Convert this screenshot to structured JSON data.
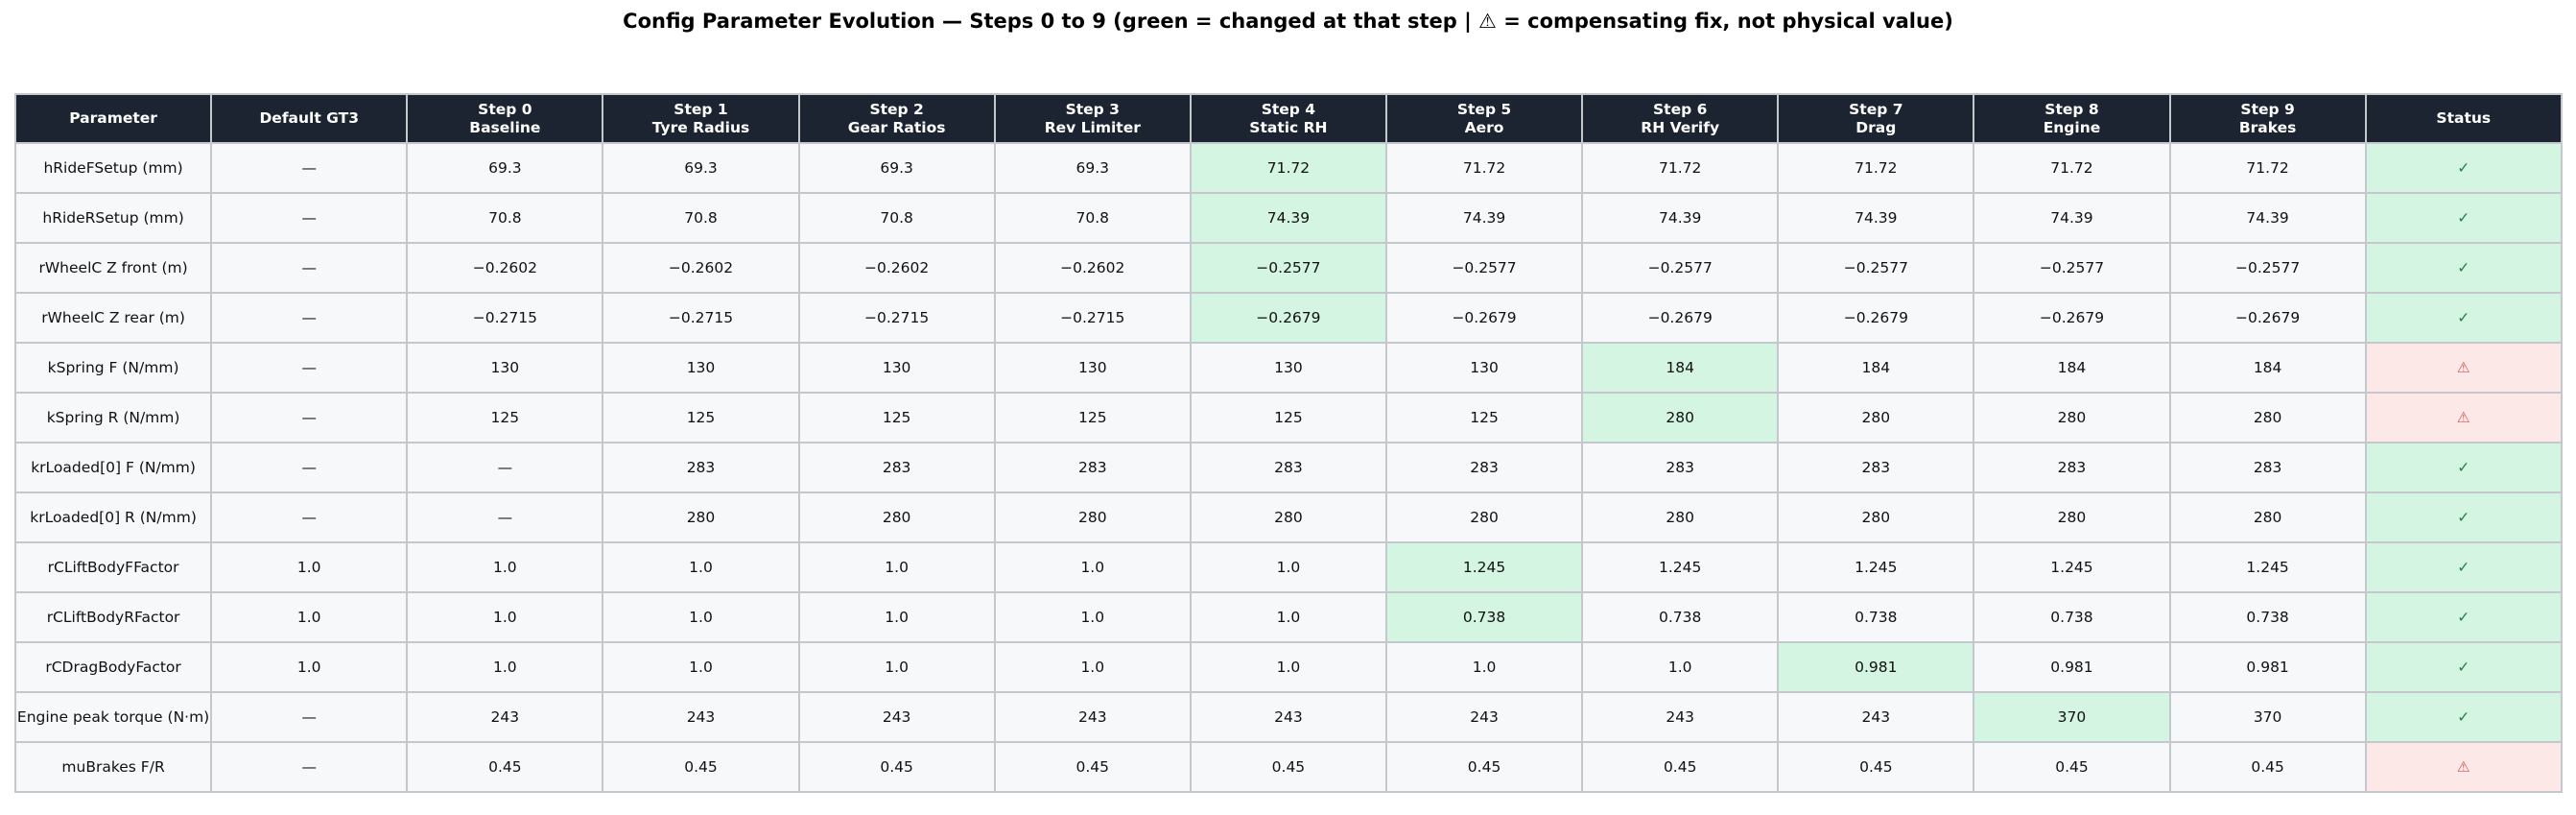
{
  "title": "Config Parameter Evolution — Steps 0 to 9  (green = changed at that step  |  ⚠ = compensating fix, not physical value)",
  "colors": {
    "header_bg": "#1b2430",
    "cell_bg": "#f7f8fa",
    "changed_bg": "#d5f5e3",
    "warn_bg": "#fde8e8",
    "ok_text": "#1e8449",
    "warn_text": "#d9534f"
  },
  "columns": [
    {
      "line1": "Parameter",
      "line2": ""
    },
    {
      "line1": "Default GT3",
      "line2": ""
    },
    {
      "line1": "Step 0",
      "line2": "Baseline"
    },
    {
      "line1": "Step 1",
      "line2": "Tyre Radius"
    },
    {
      "line1": "Step 2",
      "line2": "Gear Ratios"
    },
    {
      "line1": "Step 3",
      "line2": "Rev Limiter"
    },
    {
      "line1": "Step 4",
      "line2": "Static RH"
    },
    {
      "line1": "Step 5",
      "line2": "Aero"
    },
    {
      "line1": "Step 6",
      "line2": "RH Verify"
    },
    {
      "line1": "Step 7",
      "line2": "Drag"
    },
    {
      "line1": "Step 8",
      "line2": "Engine"
    },
    {
      "line1": "Step 9",
      "line2": "Brakes"
    },
    {
      "line1": "Status",
      "line2": ""
    }
  ],
  "rows": [
    {
      "cells": [
        "hRideFSetup (mm)",
        "—",
        "69.3",
        "69.3",
        "69.3",
        "69.3",
        "71.72",
        "71.72",
        "71.72",
        "71.72",
        "71.72",
        "71.72",
        "✓"
      ],
      "changed_step": 4,
      "status": "ok"
    },
    {
      "cells": [
        "hRideRSetup (mm)",
        "—",
        "70.8",
        "70.8",
        "70.8",
        "70.8",
        "74.39",
        "74.39",
        "74.39",
        "74.39",
        "74.39",
        "74.39",
        "✓"
      ],
      "changed_step": 4,
      "status": "ok"
    },
    {
      "cells": [
        "rWheelC Z front (m)",
        "—",
        "−0.2602",
        "−0.2602",
        "−0.2602",
        "−0.2602",
        "−0.2577",
        "−0.2577",
        "−0.2577",
        "−0.2577",
        "−0.2577",
        "−0.2577",
        "✓"
      ],
      "changed_step": 4,
      "status": "ok"
    },
    {
      "cells": [
        "rWheelC Z rear (m)",
        "—",
        "−0.2715",
        "−0.2715",
        "−0.2715",
        "−0.2715",
        "−0.2679",
        "−0.2679",
        "−0.2679",
        "−0.2679",
        "−0.2679",
        "−0.2679",
        "✓"
      ],
      "changed_step": 4,
      "status": "ok"
    },
    {
      "cells": [
        "kSpring F (N/mm)",
        "—",
        "130",
        "130",
        "130",
        "130",
        "130",
        "130",
        "184",
        "184",
        "184",
        "184",
        "⚠"
      ],
      "changed_step": 6,
      "status": "warn"
    },
    {
      "cells": [
        "kSpring R (N/mm)",
        "—",
        "125",
        "125",
        "125",
        "125",
        "125",
        "125",
        "280",
        "280",
        "280",
        "280",
        "⚠"
      ],
      "changed_step": 6,
      "status": "warn"
    },
    {
      "cells": [
        "krLoaded[0] F (N/mm)",
        "—",
        "—",
        "283",
        "283",
        "283",
        "283",
        "283",
        "283",
        "283",
        "283",
        "283",
        "✓"
      ],
      "changed_step": null,
      "status": "ok"
    },
    {
      "cells": [
        "krLoaded[0] R (N/mm)",
        "—",
        "—",
        "280",
        "280",
        "280",
        "280",
        "280",
        "280",
        "280",
        "280",
        "280",
        "✓"
      ],
      "changed_step": null,
      "status": "ok"
    },
    {
      "cells": [
        "rCLiftBodyFFactor",
        "1.0",
        "1.0",
        "1.0",
        "1.0",
        "1.0",
        "1.0",
        "1.245",
        "1.245",
        "1.245",
        "1.245",
        "1.245",
        "✓"
      ],
      "changed_step": 5,
      "status": "ok"
    },
    {
      "cells": [
        "rCLiftBodyRFactor",
        "1.0",
        "1.0",
        "1.0",
        "1.0",
        "1.0",
        "1.0",
        "0.738",
        "0.738",
        "0.738",
        "0.738",
        "0.738",
        "✓"
      ],
      "changed_step": 5,
      "status": "ok"
    },
    {
      "cells": [
        "rCDragBodyFactor",
        "1.0",
        "1.0",
        "1.0",
        "1.0",
        "1.0",
        "1.0",
        "1.0",
        "1.0",
        "0.981",
        "0.981",
        "0.981",
        "✓"
      ],
      "changed_step": 7,
      "status": "ok"
    },
    {
      "cells": [
        "Engine peak torque (N·m)",
        "—",
        "243",
        "243",
        "243",
        "243",
        "243",
        "243",
        "243",
        "243",
        "370",
        "370",
        "✓"
      ],
      "changed_step": 8,
      "status": "ok"
    },
    {
      "cells": [
        "muBrakes F/R",
        "—",
        "0.45",
        "0.45",
        "0.45",
        "0.45",
        "0.45",
        "0.45",
        "0.45",
        "0.45",
        "0.45",
        "0.45",
        "⚠"
      ],
      "changed_step": null,
      "status": "warn"
    }
  ]
}
